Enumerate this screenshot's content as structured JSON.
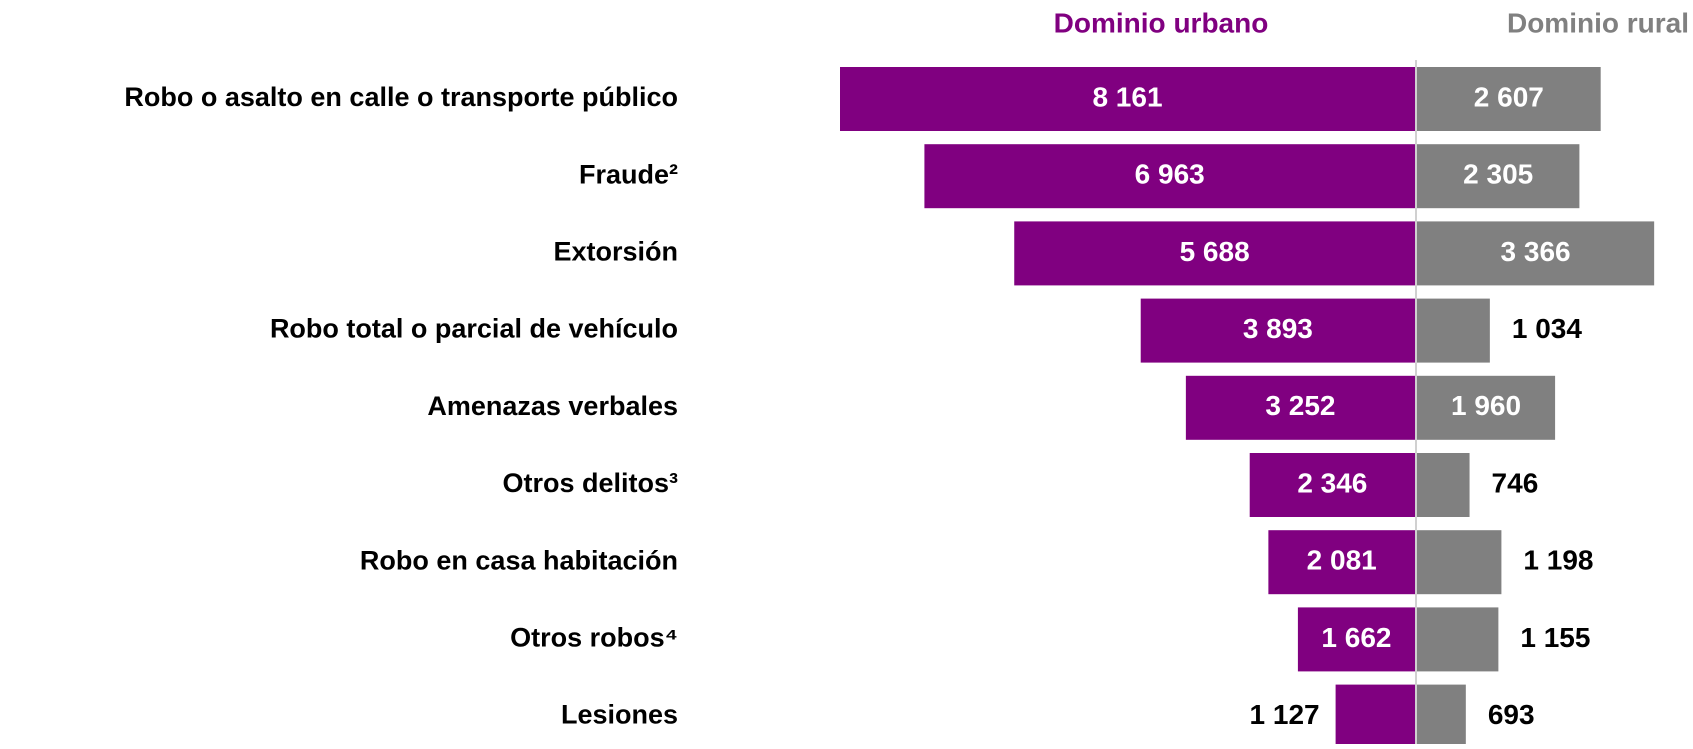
{
  "chart_data": {
    "type": "butterfly-bar",
    "categories": [
      "Robo o asalto en calle o transporte público",
      "Fraude²",
      "Extorsión",
      "Robo total o parcial de vehículo",
      "Amenazas verbales",
      "Otros delitos³",
      "Robo en casa habitación",
      "Otros robos⁴",
      "Lesiones"
    ],
    "series": [
      {
        "name": "Dominio urbano",
        "color": "#800080",
        "values": [
          8161,
          6963,
          5688,
          3893,
          3252,
          2346,
          2081,
          1662,
          1127
        ],
        "value_labels": [
          "8 161",
          "6 963",
          "5 688",
          "3 893",
          "3 252",
          "2 346",
          "2 081",
          "1 662",
          "1 127"
        ]
      },
      {
        "name": "Dominio rural",
        "color": "#808080",
        "values": [
          2607,
          2305,
          3366,
          1034,
          1960,
          746,
          1198,
          1155,
          693
        ],
        "value_labels": [
          "2 607",
          "2 305",
          "3 366",
          "1 034",
          "1 960",
          "746",
          "1 198",
          "1 155",
          "693"
        ]
      }
    ]
  }
}
